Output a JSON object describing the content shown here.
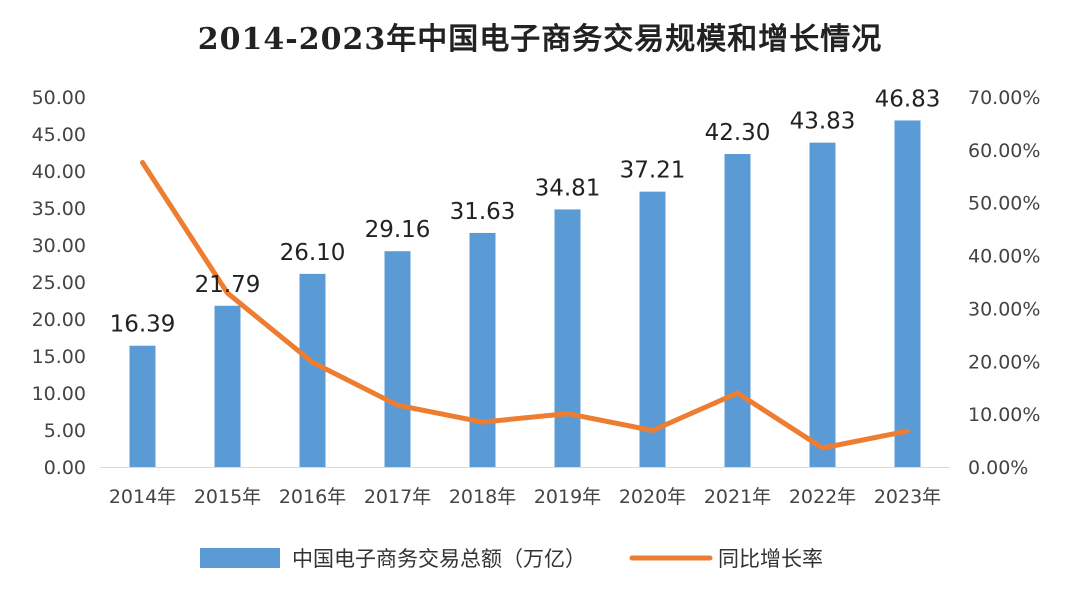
{
  "chart_data": {
    "type": "bar+line",
    "title": "2014-2023年中国电子商务交易规模和增长情况",
    "categories": [
      "2014年",
      "2015年",
      "2016年",
      "2017年",
      "2018年",
      "2019年",
      "2020年",
      "2021年",
      "2022年",
      "2023年"
    ],
    "series": [
      {
        "name": "中国电子商务交易总额（万亿）",
        "type": "bar",
        "axis": "left",
        "color": "#5b9bd5",
        "values": [
          16.39,
          21.79,
          26.1,
          29.16,
          31.63,
          34.81,
          37.21,
          42.3,
          43.83,
          46.83
        ],
        "labels": [
          "16.39",
          "21.79",
          "26.10",
          "29.16",
          "31.63",
          "34.81",
          "37.21",
          "42.30",
          "43.83",
          "46.83"
        ]
      },
      {
        "name": "同比增长率",
        "type": "line",
        "axis": "right",
        "color": "#ed7d31",
        "values": [
          57.6,
          32.9,
          19.8,
          11.7,
          8.5,
          10.1,
          6.9,
          14.0,
          3.6,
          6.8
        ]
      }
    ],
    "left_axis": {
      "min": 0,
      "max": 50,
      "step": 5,
      "ticks": [
        "0.00",
        "5.00",
        "10.00",
        "15.00",
        "20.00",
        "25.00",
        "30.00",
        "35.00",
        "40.00",
        "45.00",
        "50.00"
      ]
    },
    "right_axis": {
      "min": 0,
      "max": 70,
      "step": 10,
      "ticks": [
        "0.00%",
        "10.00%",
        "20.00%",
        "30.00%",
        "40.00%",
        "50.00%",
        "60.00%",
        "70.00%"
      ]
    },
    "grid": false,
    "legend_position": "bottom"
  }
}
